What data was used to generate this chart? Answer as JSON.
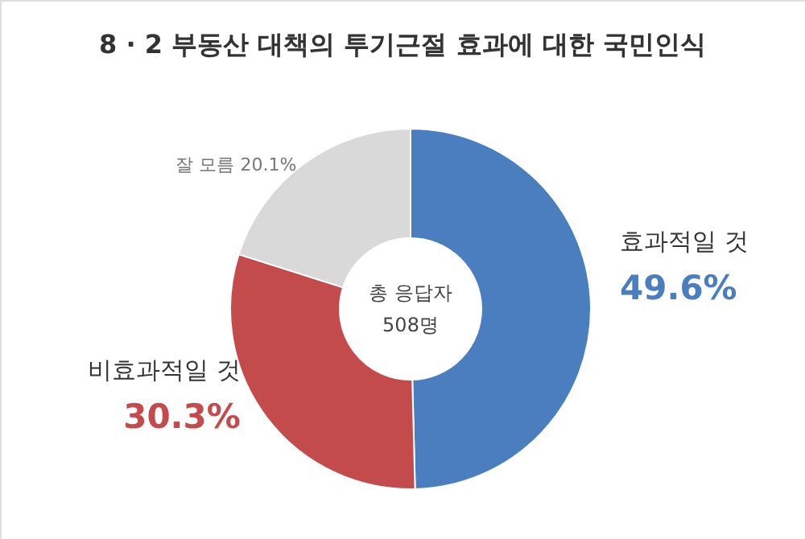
{
  "chart_data": {
    "type": "donut",
    "title": "8 · 2 부동산 대책의 투기근절 효과에 대한 국민인식",
    "categories": [
      "효과적일 것",
      "비효과적일 것",
      "잘 모름"
    ],
    "values": [
      49.6,
      30.3,
      20.1
    ],
    "colors": [
      "#4a7ebf",
      "#c44b4b",
      "#d9d9d9"
    ],
    "value_labels": [
      "49.6%",
      "30.3%",
      "20.1%"
    ],
    "annotations": [
      "총 응답자",
      "508명"
    ]
  }
}
